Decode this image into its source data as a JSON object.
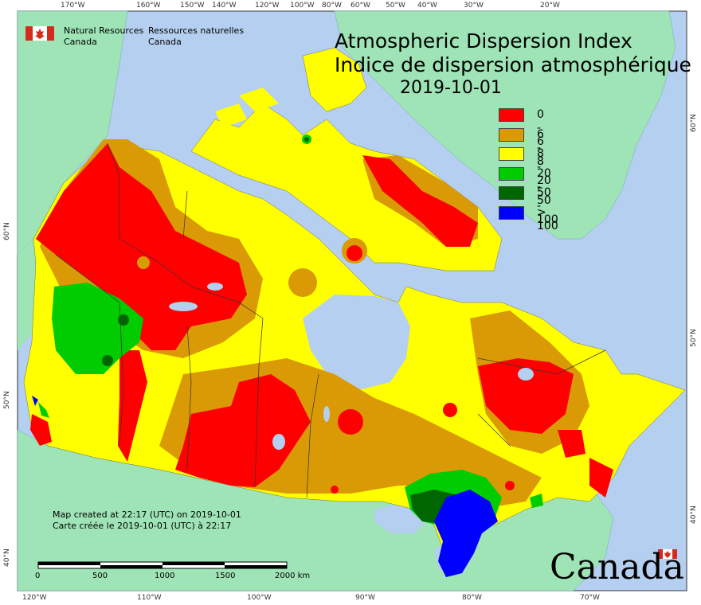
{
  "title_en": "Atmospheric Dispersion Index",
  "title_fr": "Indice de dispersion atmosphérique",
  "date": "2019-10-01",
  "org_en_line1": "Natural Resources",
  "org_en_line2": "Canada",
  "org_fr_line1": "Ressources naturelles",
  "org_fr_line2": "Canada",
  "legend": [
    {
      "label": "0 - 6",
      "color": "#ff0000"
    },
    {
      "label": "6 - 8",
      "color": "#d99a06"
    },
    {
      "label": "8 - 20",
      "color": "#ffff00"
    },
    {
      "label": "20 - 50",
      "color": "#00cc00"
    },
    {
      "label": "50 - 100",
      "color": "#006600"
    },
    {
      "label": "> 100",
      "color": "#0000ff"
    }
  ],
  "map_note_en": "Map created at 22:17 (UTC) on 2019-10-01",
  "map_note_fr": "Carte créée le 2019-10-01 (UTC) à 22:17",
  "scale_labels": [
    "0",
    "500",
    "1000",
    "1500",
    "2000 km"
  ],
  "top_ticks": [
    "170°W",
    "160°W",
    "150°W",
    "140°W",
    "120°W",
    "100°W",
    "80°W",
    "60°W",
    "50°W",
    "40°W",
    "30°W",
    "20°W"
  ],
  "bottom_ticks": [
    "120°W",
    "110°W",
    "100°W",
    "90°W",
    "80°W",
    "70°W"
  ],
  "left_ticks": [
    "60°N",
    "50°N",
    "40°N"
  ],
  "right_ticks": [
    "60°N",
    "50°N",
    "40°N"
  ],
  "wordmark": "Canada",
  "colors": {
    "water": "#b4cfef",
    "foreign_land": "#9ee4b6"
  }
}
